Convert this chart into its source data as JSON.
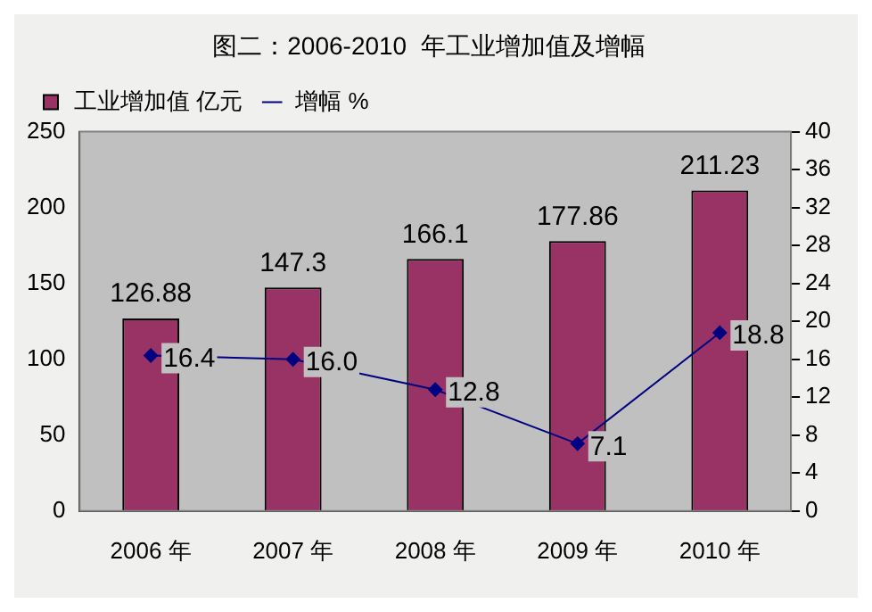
{
  "chart_data": {
    "type": "bar",
    "title": "图二：2006-2010  年工业增加值及增幅",
    "categories": [
      "2006 年",
      "2007 年",
      "2008 年",
      "2009 年",
      "2010 年"
    ],
    "series": [
      {
        "name": "工业增加值 亿元",
        "color": "#993366",
        "values": [
          126.88,
          147.3,
          166.1,
          177.86,
          211.23
        ]
      },
      {
        "name": "增幅 %",
        "type": "line",
        "axis": "y2",
        "color": "#000080",
        "marker": "diamond",
        "values": [
          16.4,
          16.0,
          12.8,
          7.1,
          18.8
        ],
        "value_labels": [
          "16.4",
          "16.0",
          "12.8",
          "7.1",
          "18.8"
        ]
      }
    ],
    "ylim": [
      0,
      250
    ],
    "yticks": [
      0,
      50,
      100,
      150,
      200,
      250
    ],
    "y2lim": [
      0,
      40
    ],
    "y2ticks": [
      0,
      4,
      8,
      12,
      16,
      20,
      24,
      28,
      32,
      36,
      40
    ],
    "data_labels": true,
    "legend": "top left",
    "grid": false
  }
}
